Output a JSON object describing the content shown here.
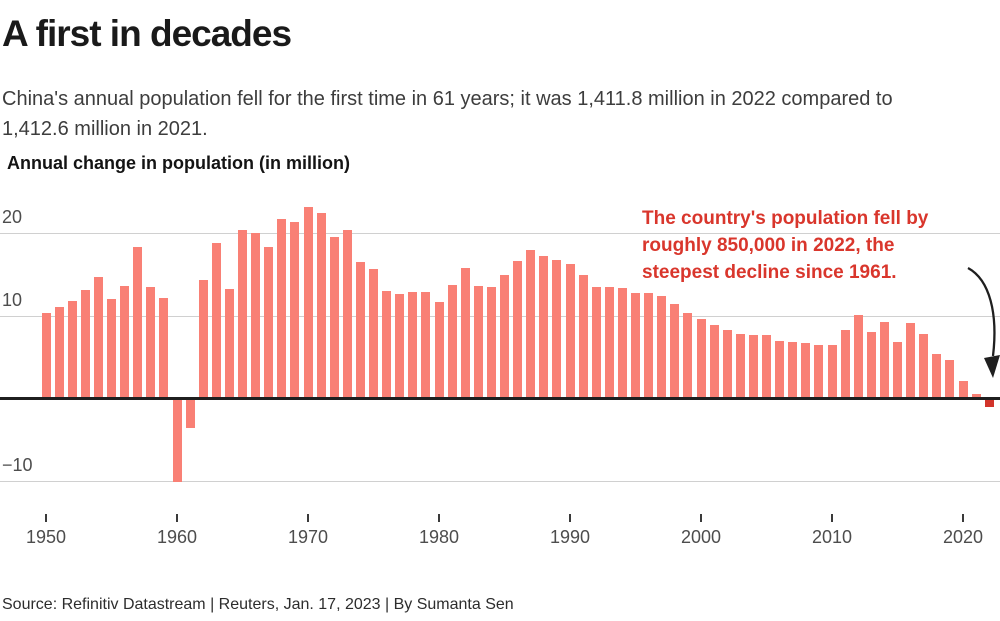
{
  "header": {
    "title": "A first in decades",
    "subtitle": "China's annual population fell for the first time in 61 years; it was 1,411.8 million in 2022 compared to 1,412.6 million in 2021."
  },
  "annotation": {
    "lines": [
      "The country's population fell by",
      "roughly 850,000 in 2022, the",
      "steepest decline since 1961."
    ]
  },
  "footer": {
    "source": "Source: Refinitiv Datastream | Reuters, Jan. 17, 2023 | By Sumanta Sen"
  },
  "colors": {
    "bar": "#f98075",
    "bar_highlight": "#d2342a",
    "annotation_text": "#d9362c",
    "gridline": "#d0d0d0",
    "axis": "#1f1f1f",
    "tick_label": "#4d4d4d"
  },
  "chart_data": {
    "type": "bar",
    "title": "Annual change in population (in million)",
    "xlabel": "",
    "ylabel": "Annual change in population (in million)",
    "grid": true,
    "legend": "none",
    "ylim": [
      -12.5,
      25.5
    ],
    "yticks": [
      20,
      10,
      -10
    ],
    "ytick_labels": [
      "20",
      "10",
      "−10"
    ],
    "xticks": [
      1950,
      1960,
      1970,
      1980,
      1990,
      2000,
      2010,
      2020
    ],
    "highlight_x": 2022,
    "x": [
      1950,
      1951,
      1952,
      1953,
      1954,
      1955,
      1956,
      1957,
      1958,
      1959,
      1960,
      1961,
      1962,
      1963,
      1964,
      1965,
      1966,
      1967,
      1968,
      1969,
      1970,
      1971,
      1972,
      1973,
      1974,
      1975,
      1976,
      1977,
      1978,
      1979,
      1980,
      1981,
      1982,
      1983,
      1984,
      1985,
      1986,
      1987,
      1988,
      1989,
      1990,
      1991,
      1992,
      1993,
      1994,
      1995,
      1996,
      1997,
      1998,
      1999,
      2000,
      2001,
      2002,
      2003,
      2004,
      2005,
      2006,
      2007,
      2008,
      2009,
      2010,
      2011,
      2012,
      2013,
      2014,
      2015,
      2016,
      2017,
      2018,
      2019,
      2020,
      2021,
      2022
    ],
    "values": [
      10.29,
      11.04,
      11.82,
      13.14,
      14.7,
      11.99,
      13.63,
      18.25,
      13.41,
      12.13,
      -10.0,
      -3.48,
      14.36,
      18.77,
      13.27,
      20.39,
      20.04,
      18.26,
      21.66,
      21.37,
      23.21,
      22.37,
      19.48,
      20.34,
      16.48,
      15.61,
      12.97,
      12.57,
      12.85,
      12.83,
      11.63,
      13.67,
      15.82,
      13.54,
      13.49,
      14.94,
      16.56,
      17.93,
      17.26,
      16.78,
      16.29,
      14.9,
      13.48,
      13.46,
      13.33,
      12.71,
      12.68,
      12.37,
      11.35,
      10.25,
      9.57,
      8.84,
      8.26,
      7.74,
      7.61,
      7.68,
      6.92,
      6.81,
      6.73,
      6.48,
      6.41,
      8.25,
      10.06,
      8.04,
      9.2,
      6.8,
      9.06,
      7.79,
      5.3,
      4.67,
      2.04,
      0.48,
      -0.85
    ]
  }
}
